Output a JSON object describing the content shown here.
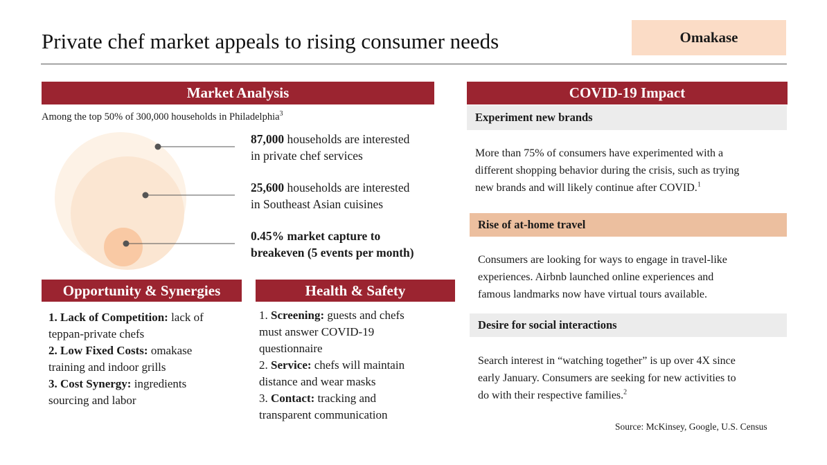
{
  "header": {
    "title": "Private chef market appeals to rising consumer needs",
    "tag": "Omakase"
  },
  "market": {
    "heading": "Market Analysis",
    "intro": "Among the top 50% of 300,000 households in Philadelphia",
    "intro_sup": "3",
    "stats": [
      {
        "bold": "87,000",
        "text_1": " households are interested",
        "text_2": "in private chef services"
      },
      {
        "bold": "25,600",
        "text_1": " households are interested",
        "text_2": "in Southeast Asian cuisines"
      },
      {
        "line_1": "0.45% market capture to",
        "line_2": "breakeven (5 events per month)"
      }
    ],
    "circle_colors": [
      "#fdf2e6",
      "#fbe6d2",
      "#f9c9a4"
    ]
  },
  "opportunity": {
    "heading": "Opportunity & Synergies",
    "items": [
      {
        "bold": "1. Lack of Competition:",
        "rest": " lack of",
        "line2": "teppan-private chefs"
      },
      {
        "bold": "2. Low Fixed Costs:",
        "rest": " omakase",
        "line2": "training and indoor grills"
      },
      {
        "bold": "3. Cost Synergy:",
        "rest": " ingredients",
        "line2": "sourcing and labor"
      }
    ]
  },
  "health": {
    "heading": "Health & Safety",
    "items": [
      {
        "num": "1. ",
        "bold": "Screening:",
        "rest": " guests and chefs",
        "line2": "must answer COVID-19",
        "line3": "questionnaire"
      },
      {
        "num": "2. ",
        "bold": "Service:",
        "rest": " chefs will maintain",
        "line2": "distance and wear masks"
      },
      {
        "num": "3. ",
        "bold": "Contact:",
        "rest": " tracking and",
        "line2": "transparent communication"
      }
    ]
  },
  "covid": {
    "heading": "COVID-19 Impact",
    "sections": [
      {
        "title": "Experiment new brands",
        "lines": [
          "More than 75% of consumers have experimented with a",
          "different shopping behavior during the crisis, such as trying",
          "new brands and will likely continue after COVID."
        ],
        "sup": "1"
      },
      {
        "title": "Rise of at-home travel",
        "lines": [
          "Consumers are looking for ways to engage in travel-like",
          "experiences. Airbnb launched online experiences and",
          "famous landmarks now have virtual tours available."
        ],
        "sup": ""
      },
      {
        "title": "Desire for social interactions",
        "lines": [
          "Search interest in “watching together” is up over 4X since",
          "early January. Consumers are seeking for new activities to",
          "do with their respective families."
        ],
        "sup": "2"
      }
    ],
    "sub_colors": [
      "#ececec",
      "#ecbf9f",
      "#ececec"
    ]
  },
  "footer": {
    "source": "Source: McKinsey, Google, U.S. Census"
  }
}
